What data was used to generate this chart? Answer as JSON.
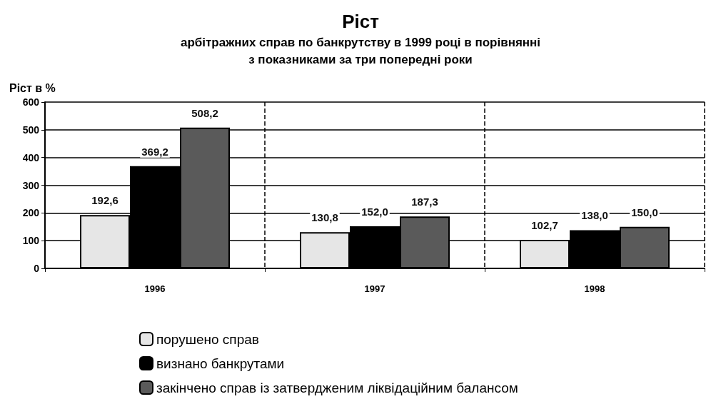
{
  "chart_data": {
    "type": "bar",
    "title": "Ріст",
    "subtitle": "арбітражних справ по банкрутству в 1999 році в порівнянні\nз показниками за три попередні роки",
    "ylabel": "Ріст в %",
    "categories": [
      "1996",
      "1997",
      "1998"
    ],
    "series": [
      {
        "name": "порушено справ",
        "color": "#e6e6e6",
        "values": [
          192.6,
          130.8,
          102.7
        ],
        "value_labels": [
          "192,6",
          "130,8",
          "102,7"
        ]
      },
      {
        "name": "визнано банкрутами",
        "color": "#000000",
        "values": [
          369.2,
          152.0,
          138.0
        ],
        "value_labels": [
          "369,2",
          "152,0",
          "138,0"
        ]
      },
      {
        "name": "закінчено справ із затвердженим ліквідаційним балансом",
        "color": "#5a5a5a",
        "values": [
          508.2,
          187.3,
          150.0
        ],
        "value_labels": [
          "508,2",
          "187,3",
          "150,0"
        ]
      }
    ],
    "ylim": [
      0,
      600
    ],
    "yticks": [
      0,
      100,
      200,
      300,
      400,
      500,
      600
    ],
    "grid": true,
    "legend": "bottom"
  }
}
